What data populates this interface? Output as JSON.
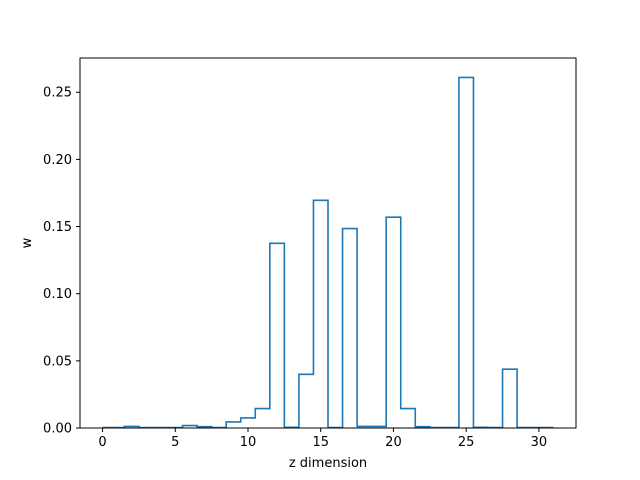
{
  "chart_data": {
    "type": "line",
    "style": "step",
    "xlabel": "z dimension",
    "ylabel": "w",
    "xlim": [
      -1.55,
      32.55
    ],
    "ylim": [
      0,
      0.2755
    ],
    "grid": false,
    "xticks": [
      0,
      5,
      10,
      15,
      20,
      25,
      30
    ],
    "yticks": [
      0.0,
      0.05,
      0.1,
      0.15,
      0.2,
      0.25
    ],
    "ytick_labels": [
      "0.00",
      "0.05",
      "0.10",
      "0.15",
      "0.20",
      "0.25"
    ],
    "xtick_labels": [
      "0",
      "5",
      "10",
      "15",
      "20",
      "25",
      "30"
    ],
    "series": [
      {
        "color": "#1f77b4",
        "x": [
          0,
          1,
          2,
          3,
          4,
          5,
          6,
          7,
          8,
          9,
          10,
          11,
          12,
          13,
          14,
          15,
          16,
          17,
          18,
          19,
          20,
          21,
          22,
          23,
          24,
          25,
          26,
          27,
          28,
          29,
          30,
          31
        ],
        "values": [
          0.0003,
          0.0003,
          0.0012,
          0.0003,
          0.0003,
          0.0003,
          0.0018,
          0.001,
          0.0003,
          0.0045,
          0.0075,
          0.0145,
          0.1375,
          0.0005,
          0.04,
          0.1695,
          0.0003,
          0.1485,
          0.0012,
          0.0012,
          0.157,
          0.0145,
          0.001,
          0.0003,
          0.0003,
          0.261,
          0.0005,
          0.0003,
          0.0438,
          0.0003,
          0.0003,
          0.0003
        ]
      }
    ]
  }
}
